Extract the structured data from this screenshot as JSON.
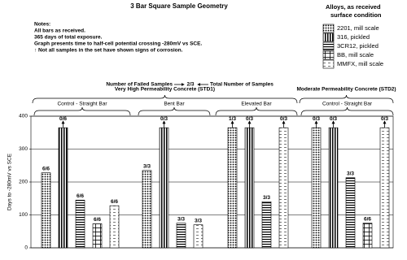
{
  "chart_data": {
    "type": "bar",
    "title": "3 Bar Square Sample Geometry",
    "notes": [
      "Notes:",
      "All bars as received.",
      "365 days of total exposure.",
      "Graph presents time to half-cell potential crossing -280mV vs SCE.",
      "↑ Not all samples in the set have shown signs of corrosion."
    ],
    "key": {
      "left": "Number of Failed Samples",
      "example": "2/3",
      "right": "Total Number of Samples"
    },
    "legend_title": [
      "Alloys, as received",
      "surface condition"
    ],
    "ylabel": "Days to -280mV vs SCE",
    "ylim": [
      0,
      400
    ],
    "yticks": [
      0,
      100,
      200,
      300,
      400
    ],
    "grid": true,
    "supergroups": [
      "Very High Permeability Concrete (STD1)",
      "Moderate Permeability Concrete (STD2)"
    ],
    "categories": [
      "Control - Straight Bar",
      "Bent Bar",
      "Elevated Bar",
      "Control - Straight Bar"
    ],
    "series": [
      {
        "name": "2201, mill scale",
        "color": "#000000",
        "pattern": "dots",
        "values": [
          228,
          235,
          365,
          365
        ],
        "value_labels": [
          "6/6",
          "3/3",
          "1/3",
          "0/3"
        ],
        "arrows": [
          false,
          false,
          true,
          true
        ]
      },
      {
        "name": "316, pickled",
        "color": "#000000",
        "pattern": "vstripes",
        "values": [
          365,
          365,
          365,
          365
        ],
        "value_labels": [
          "0/6",
          "0/3",
          "0/3",
          "0/3"
        ],
        "arrows": [
          true,
          true,
          true,
          true
        ]
      },
      {
        "name": "3CR12, pickled",
        "color": "#000000",
        "pattern": "hstripes",
        "values": [
          145,
          75,
          140,
          213
        ],
        "value_labels": [
          "6/6",
          "3/3",
          "3/3",
          "3/3"
        ],
        "arrows": [
          false,
          false,
          false,
          false
        ]
      },
      {
        "name": "BB, mill scale",
        "color": "#000000",
        "pattern": "bricks",
        "values": [
          73,
          null,
          null,
          75
        ],
        "value_labels": [
          "6/6",
          null,
          null,
          "6/6"
        ],
        "arrows": [
          false,
          false,
          false,
          false
        ]
      },
      {
        "name": "MMFX, mill scale",
        "color": "#000000",
        "pattern": "dashes",
        "values": [
          128,
          70,
          365,
          365
        ],
        "value_labels": [
          "6/6",
          "3/3",
          "0/3",
          "0/3"
        ],
        "arrows": [
          false,
          false,
          true,
          true
        ]
      }
    ]
  }
}
